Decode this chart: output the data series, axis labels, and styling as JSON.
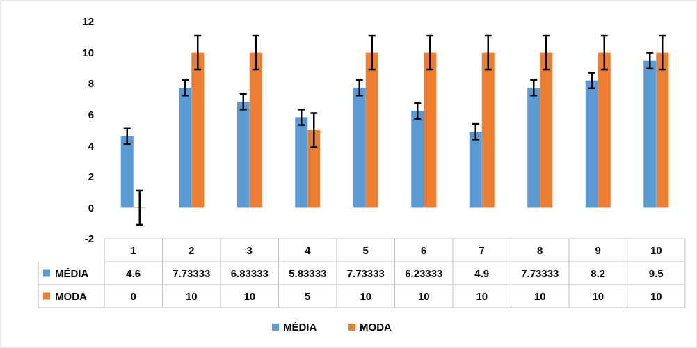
{
  "chart_data": {
    "type": "bar",
    "categories": [
      "1",
      "2",
      "3",
      "4",
      "5",
      "6",
      "7",
      "8",
      "9",
      "10"
    ],
    "series": [
      {
        "name": "MÉDIA",
        "color": "#5b9bd5",
        "values": [
          4.6,
          7.73333,
          6.83333,
          5.83333,
          7.73333,
          6.23333,
          4.9,
          7.73333,
          8.2,
          9.5
        ],
        "errors": [
          0.5,
          0.5,
          0.5,
          0.5,
          0.5,
          0.5,
          0.5,
          0.5,
          0.5,
          0.5
        ]
      },
      {
        "name": "MODA",
        "color": "#ed7d31",
        "values": [
          0,
          10,
          10,
          5,
          10,
          10,
          10,
          10,
          10,
          10
        ],
        "errors": [
          1.1,
          1.1,
          1.1,
          1.1,
          1.1,
          1.1,
          1.1,
          1.1,
          1.1,
          1.1
        ]
      }
    ],
    "ylim": [
      -2,
      12
    ],
    "yticks": [
      -2,
      0,
      2,
      4,
      6,
      8,
      10,
      12
    ],
    "grid": false,
    "legend": "bottom",
    "data_labels": true
  }
}
